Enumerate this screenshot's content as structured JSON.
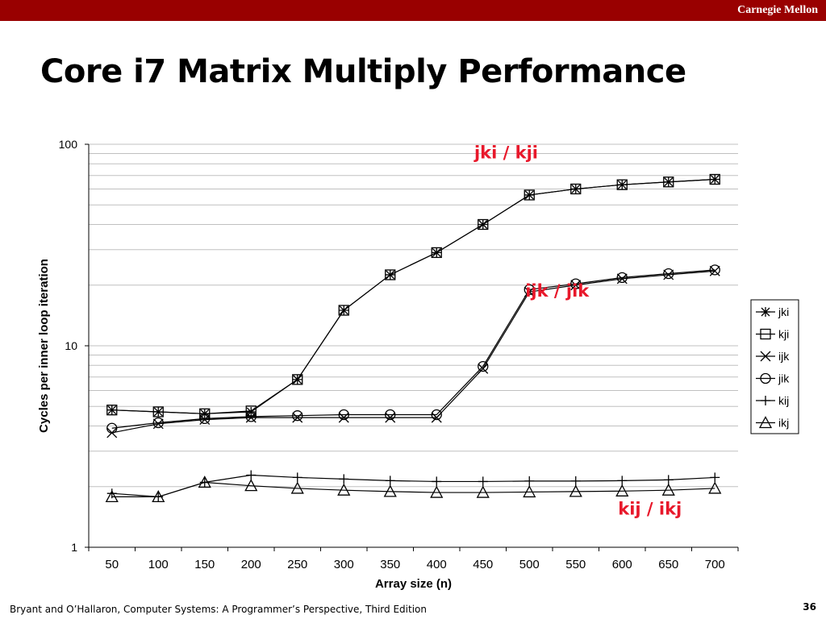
{
  "header": {
    "brand": "Carnegie Mellon"
  },
  "slide": {
    "title": "Core i7 Matrix Multiply Performance"
  },
  "footer": {
    "citation": "Bryant and O’Hallaron, Computer Systems: A Programmer’s Perspective, Third Edition",
    "page_number": "36"
  },
  "colors": {
    "bar": "#990000",
    "annotation": "#e8182b",
    "line": "#000000",
    "grid": "#c0c0c0"
  },
  "chart_data": {
    "type": "line",
    "title": "",
    "xlabel": "Array size (n)",
    "ylabel": "Cycles per inner loop iteration",
    "yscale": "log",
    "ylim": [
      1,
      100
    ],
    "ytick_labels": [
      "1",
      "10",
      "100"
    ],
    "ytick_values": [
      1,
      10,
      100
    ],
    "x": [
      50,
      100,
      150,
      200,
      250,
      300,
      350,
      400,
      450,
      500,
      550,
      600,
      650,
      700
    ],
    "x_labels": [
      "50",
      "100",
      "150",
      "200",
      "250",
      "300",
      "350",
      "400",
      "450",
      "500",
      "550",
      "600",
      "650",
      "700"
    ],
    "grid": "horizontal",
    "legend_position": "right",
    "series": [
      {
        "name": "jki",
        "marker": "asterisk",
        "values": [
          4.8,
          4.7,
          4.6,
          4.7,
          6.8,
          15,
          22.5,
          29,
          40,
          56,
          60,
          63,
          65,
          67
        ]
      },
      {
        "name": "kji",
        "marker": "square",
        "values": [
          4.8,
          4.7,
          4.6,
          4.75,
          6.8,
          15,
          22.5,
          29,
          40,
          56,
          60,
          63,
          65,
          67
        ]
      },
      {
        "name": "ijk",
        "marker": "x",
        "values": [
          3.7,
          4.1,
          4.3,
          4.4,
          4.4,
          4.4,
          4.4,
          4.4,
          7.7,
          18.5,
          20,
          21.5,
          22.5,
          23.5
        ]
      },
      {
        "name": "jik",
        "marker": "circle",
        "values": [
          3.9,
          4.15,
          4.35,
          4.45,
          4.5,
          4.55,
          4.55,
          4.55,
          7.9,
          19,
          20.3,
          21.8,
          22.8,
          23.8
        ]
      },
      {
        "name": "kij",
        "marker": "plus",
        "values": [
          1.85,
          1.78,
          2.1,
          2.28,
          2.22,
          2.18,
          2.14,
          2.12,
          2.12,
          2.13,
          2.13,
          2.14,
          2.16,
          2.22
        ]
      },
      {
        "name": "ikj",
        "marker": "triangle",
        "values": [
          1.78,
          1.78,
          2.1,
          2.02,
          1.96,
          1.92,
          1.89,
          1.87,
          1.87,
          1.88,
          1.89,
          1.9,
          1.92,
          1.96
        ]
      }
    ],
    "annotations": [
      {
        "text": "jki / kji",
        "x": 475,
        "y": 85
      },
      {
        "text": "ijk / jik",
        "x": 530,
        "y": 17.5
      },
      {
        "text": "kij / ikj",
        "x": 630,
        "y": 1.45
      }
    ]
  }
}
